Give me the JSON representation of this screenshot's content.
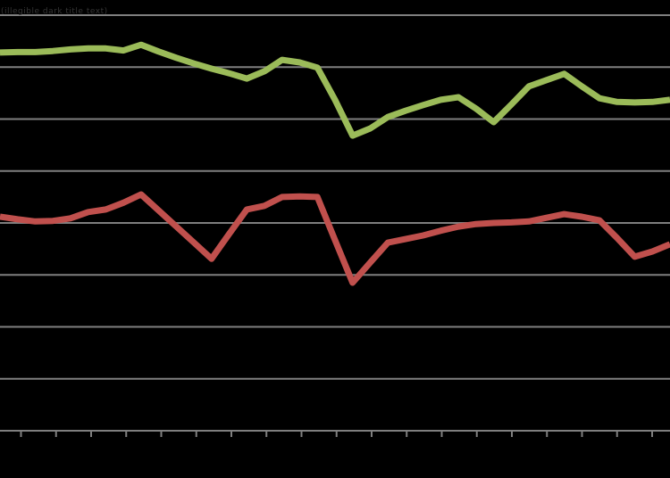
{
  "chart": {
    "title": "(illegible dark title text)",
    "background_color": "#000000",
    "gridline_color": "#7F7F7F",
    "axis_color": "#7F7F7F",
    "title_color": "#343434"
  },
  "chart_data": {
    "type": "line",
    "title": "(illegible dark title text)",
    "xlabel": "",
    "ylabel": "",
    "x": [
      0,
      1,
      2,
      3,
      4,
      5,
      6,
      7,
      8,
      9,
      10,
      11,
      12,
      13,
      14,
      15,
      16,
      17,
      18,
      19,
      20,
      21,
      22,
      23,
      24,
      25,
      26,
      27,
      28,
      29,
      30,
      31,
      32,
      33,
      34,
      35,
      36,
      37,
      38
    ],
    "series": [
      {
        "name": "green-series",
        "color": "#9BBB59",
        "values": [
          7.28,
          7.29,
          7.29,
          7.31,
          7.34,
          7.36,
          7.36,
          7.32,
          7.43,
          7.3,
          7.18,
          7.07,
          6.97,
          6.88,
          6.78,
          6.92,
          7.14,
          7.09,
          6.99,
          6.37,
          5.68,
          5.82,
          6.04,
          6.16,
          6.27,
          6.37,
          6.42,
          6.2,
          5.94,
          6.28,
          6.63,
          6.75,
          6.87,
          6.63,
          6.4,
          6.33,
          6.32,
          6.33,
          6.37
        ]
      },
      {
        "name": "red-series",
        "color": "#C0504D",
        "values": [
          4.12,
          4.07,
          4.03,
          4.04,
          4.09,
          4.21,
          4.26,
          4.39,
          4.55,
          4.24,
          3.93,
          3.62,
          3.31,
          3.79,
          4.26,
          4.33,
          4.5,
          4.51,
          4.5,
          3.67,
          2.85,
          3.24,
          3.62,
          3.69,
          3.76,
          3.85,
          3.93,
          3.98,
          4.0,
          4.01,
          4.03,
          4.1,
          4.17,
          4.12,
          4.05,
          3.71,
          3.35,
          3.45,
          3.59
        ]
      }
    ],
    "ylim": [
      0,
      8.3
    ],
    "y_gridline_units": [
      1,
      2,
      3,
      4,
      5,
      6,
      7,
      8
    ],
    "grid": true,
    "legend_position": "none",
    "x_axis": {
      "tick_count": 19,
      "tick_labels_visible": false
    },
    "y_axis": {
      "tick_labels_visible": false
    }
  }
}
